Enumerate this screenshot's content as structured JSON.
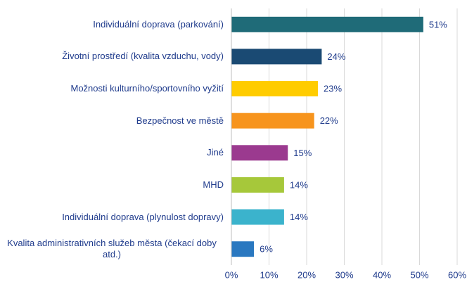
{
  "chart_data": {
    "type": "bar",
    "orientation": "horizontal",
    "categories": [
      "Individuální doprava (parkování)",
      "Životní prostředí (kvalita vzduchu, vody)",
      "Možnosti kulturního/sportovního vyžití",
      "Bezpečnost ve městě",
      "Jiné",
      "MHD",
      "Individuální doprava (plynulost dopravy)",
      "Kvalita administrativních služeb města (čekací doby atd.)"
    ],
    "values": [
      51,
      24,
      23,
      22,
      15,
      14,
      14,
      6
    ],
    "value_labels": [
      "51%",
      "24%",
      "23%",
      "22%",
      "15%",
      "14%",
      "14%",
      "6%"
    ],
    "colors": [
      "#1f6b78",
      "#1a4a73",
      "#ffcc00",
      "#f7941d",
      "#9b3a8f",
      "#a6c83a",
      "#3bb3cc",
      "#2a78c0"
    ],
    "xlim": [
      0,
      60
    ],
    "xticks": [
      {
        "value": 0,
        "label": "0%"
      },
      {
        "value": 10,
        "label": "10%"
      },
      {
        "value": 20,
        "label": "20%"
      },
      {
        "value": 30,
        "label": "30%"
      },
      {
        "value": 40,
        "label": "40%"
      },
      {
        "value": 50,
        "label": "50%"
      },
      {
        "value": 60,
        "label": "60%"
      }
    ],
    "grid": true
  }
}
